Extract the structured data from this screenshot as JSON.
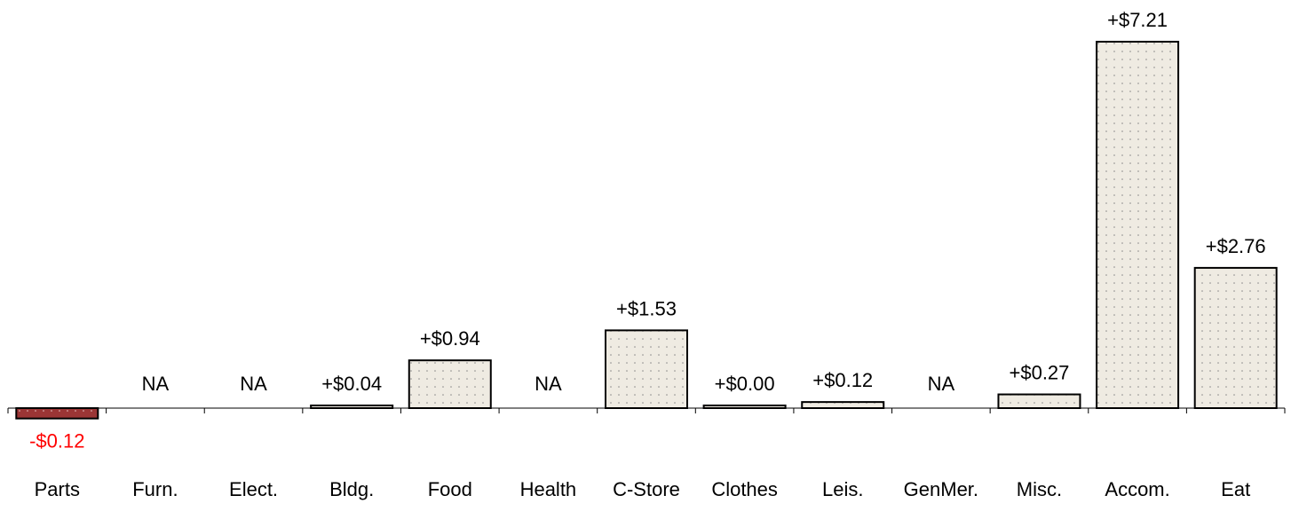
{
  "chart_data": {
    "type": "bar",
    "categories": [
      "Parts",
      "Furn.",
      "Elect.",
      "Bldg.",
      "Food",
      "Health",
      "C-Store",
      "Clothes",
      "Leis.",
      "GenMer.",
      "Misc.",
      "Accom.",
      "Eat"
    ],
    "values": [
      -0.12,
      null,
      null,
      0.04,
      0.94,
      null,
      1.53,
      0.0,
      0.12,
      null,
      0.27,
      7.21,
      2.76
    ],
    "value_labels": [
      "-$0.12",
      "NA",
      "NA",
      "+$0.04",
      "+$0.94",
      "NA",
      "+$1.53",
      "+$0.00",
      "+$0.12",
      "NA",
      "+$0.27",
      "+$7.21",
      "+$2.76"
    ],
    "title": "",
    "xlabel": "",
    "ylabel": "",
    "ylim": [
      -0.12,
      7.21
    ],
    "grid": false,
    "legend": "none",
    "colors": {
      "positive_fill": "#efebe2",
      "positive_dots": "#8a8a8a",
      "negative_fill": "#9b3535",
      "negative_dots": "#e9c8c8",
      "bar_stroke": "#000000",
      "positive_label": "#000000",
      "negative_label": "#ff0000",
      "axis": "#000000"
    }
  }
}
